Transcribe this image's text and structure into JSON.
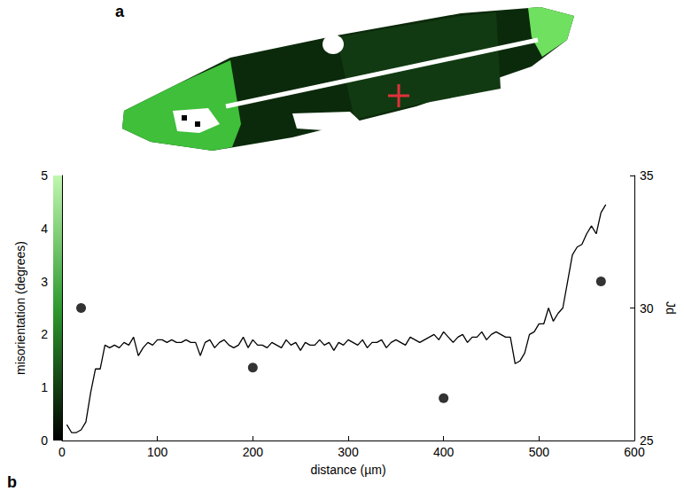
{
  "chart_data": {
    "type": "line",
    "panel_labels": [
      "a",
      "b"
    ],
    "xlabel": "distance (µm)",
    "ylabel": "misorientation (degrees)",
    "y2label": "Jd",
    "xlim": [
      0,
      600
    ],
    "xticks": [
      0,
      100,
      200,
      300,
      400,
      500,
      600
    ],
    "ylim": [
      0,
      5
    ],
    "yticks": [
      0,
      1,
      2,
      3,
      4,
      5
    ],
    "y2lim": [
      25,
      35
    ],
    "y2ticks": [
      25,
      30,
      35
    ],
    "grid": false,
    "series": [
      {
        "type": "line",
        "color": "#000000",
        "line_style": "solid",
        "x": [
          5,
          10,
          15,
          20,
          25,
          30,
          35,
          40,
          45,
          50,
          55,
          60,
          65,
          70,
          75,
          80,
          85,
          90,
          95,
          100,
          105,
          110,
          115,
          120,
          125,
          130,
          135,
          140,
          145,
          150,
          155,
          160,
          165,
          170,
          175,
          180,
          185,
          190,
          195,
          200,
          205,
          210,
          215,
          220,
          225,
          230,
          235,
          240,
          245,
          250,
          255,
          260,
          265,
          270,
          275,
          280,
          285,
          290,
          295,
          300,
          305,
          310,
          315,
          320,
          325,
          330,
          335,
          340,
          345,
          350,
          355,
          360,
          365,
          370,
          375,
          380,
          385,
          390,
          395,
          400,
          405,
          410,
          415,
          420,
          425,
          430,
          435,
          440,
          445,
          450,
          455,
          460,
          465,
          470,
          475,
          480,
          485,
          490,
          495,
          500,
          505,
          510,
          515,
          520,
          525,
          530,
          535,
          540,
          545,
          550,
          555,
          560,
          565,
          570
        ],
        "values": [
          0.3,
          0.15,
          0.15,
          0.2,
          0.35,
          0.9,
          1.35,
          1.35,
          1.8,
          1.75,
          1.8,
          1.75,
          1.85,
          1.8,
          1.95,
          1.6,
          1.75,
          1.85,
          1.8,
          1.9,
          1.9,
          1.85,
          1.9,
          1.85,
          1.85,
          1.9,
          1.85,
          1.85,
          1.6,
          1.85,
          1.9,
          1.75,
          1.85,
          1.9,
          1.8,
          1.75,
          1.8,
          1.95,
          1.75,
          1.9,
          1.8,
          1.8,
          1.75,
          1.85,
          1.8,
          1.75,
          1.9,
          1.8,
          1.85,
          1.7,
          1.85,
          1.8,
          1.8,
          1.9,
          1.8,
          1.85,
          1.7,
          1.85,
          1.8,
          1.9,
          1.85,
          1.8,
          1.9,
          1.75,
          1.85,
          1.85,
          1.9,
          1.75,
          1.85,
          1.9,
          1.85,
          1.8,
          1.95,
          1.9,
          1.85,
          1.9,
          1.95,
          2.0,
          1.9,
          2.05,
          1.95,
          1.85,
          1.95,
          2.0,
          1.85,
          1.95,
          1.95,
          2.05,
          1.9,
          2.0,
          2.05,
          2.0,
          1.95,
          1.95,
          1.45,
          1.5,
          1.65,
          2.0,
          2.05,
          2.2,
          2.2,
          2.5,
          2.25,
          2.4,
          2.5,
          3.0,
          3.5,
          3.65,
          3.7,
          3.9,
          4.05,
          3.9,
          4.3,
          4.45
        ]
      },
      {
        "type": "scatter",
        "axis": "y2",
        "color": "#000000",
        "marker": "circle",
        "x": [
          20,
          200,
          400,
          565
        ],
        "values": [
          30.0,
          27.75,
          26.6,
          31.0
        ]
      }
    ]
  }
}
